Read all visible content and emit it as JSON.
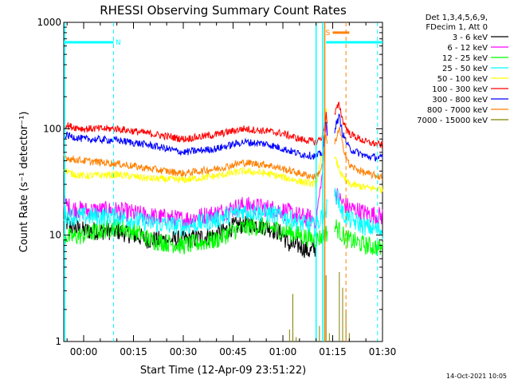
{
  "chart_data": {
    "type": "line",
    "title": "RHESSI Observing Summary Count Rates",
    "xlabel": "Start Time (12-Apr-09 23:51:22)",
    "ylabel": "Count Rate (s⁻¹ detector⁻¹)",
    "yscale": "log",
    "ylim": [
      1,
      1000
    ],
    "xlim_minutes_from_start": [
      -6,
      90
    ],
    "x_ticks": [
      {
        "label": "00:00",
        "t": 0
      },
      {
        "label": "00:15",
        "t": 15
      },
      {
        "label": "00:30",
        "t": 30
      },
      {
        "label": "00:45",
        "t": 45
      },
      {
        "label": "01:00",
        "t": 60
      },
      {
        "label": "01:15",
        "t": 75
      },
      {
        "label": "01:30",
        "t": 90
      }
    ],
    "y_ticks": [
      {
        "label": "1",
        "v": 1
      },
      {
        "label": "10",
        "v": 10
      },
      {
        "label": "100",
        "v": 100
      },
      {
        "label": "1000",
        "v": 1000
      }
    ],
    "legend": {
      "header": [
        "Det 1,3,4,5,6,9,",
        "FDecim 1, Att 0"
      ],
      "position": "right"
    },
    "series": [
      {
        "name": "3 - 6 keV",
        "color": "#000000",
        "x": [
          -6,
          -4,
          0,
          5,
          10,
          15,
          20,
          30,
          40,
          45,
          50,
          55,
          58,
          60,
          62,
          65,
          68,
          70
        ],
        "values": [
          14,
          12,
          11,
          11,
          11,
          10,
          9,
          9,
          10,
          12,
          13,
          12,
          11,
          10,
          8,
          8,
          7,
          7.5
        ]
      },
      {
        "name": "6 - 12 keV",
        "color": "#ff00ff",
        "x": [
          -6,
          -4,
          0,
          10,
          20,
          30,
          40,
          48,
          55,
          60,
          65,
          70,
          72,
          73,
          74,
          76,
          78,
          80,
          85,
          90
        ],
        "values": [
          20,
          18,
          17,
          17,
          15,
          14,
          16,
          19,
          18,
          17,
          15,
          14,
          40,
          120,
          40,
          24,
          20,
          18,
          16,
          15
        ]
      },
      {
        "name": "12 - 25 keV",
        "color": "#00ff00",
        "x": [
          -6,
          -4,
          0,
          5,
          10,
          15,
          20,
          30,
          40,
          45,
          50,
          55,
          60,
          65,
          70,
          76,
          78,
          80,
          85,
          90
        ],
        "values": [
          10,
          9.5,
          10,
          11,
          12,
          11,
          9,
          8,
          9,
          11,
          12,
          12,
          11,
          10,
          9,
          12,
          10,
          9,
          8,
          7.5
        ]
      },
      {
        "name": "25 - 50 keV",
        "color": "#00ffff",
        "x": [
          -6,
          -4,
          0,
          10,
          20,
          30,
          40,
          48,
          55,
          60,
          65,
          70,
          76,
          78,
          80,
          85,
          90
        ],
        "values": [
          16,
          15,
          15,
          15,
          13,
          12,
          14,
          17,
          16,
          15,
          13,
          12,
          25,
          16,
          14,
          12,
          11
        ]
      },
      {
        "name": "50 - 100 keV",
        "color": "#ffff00",
        "x": [
          -6,
          -4,
          0,
          10,
          20,
          30,
          40,
          48,
          55,
          60,
          65,
          70,
          72,
          73,
          74,
          76,
          78,
          80,
          85,
          90
        ],
        "values": [
          42,
          38,
          36,
          37,
          34,
          33,
          36,
          40,
          38,
          35,
          32,
          30,
          60,
          150,
          60,
          50,
          35,
          30,
          28,
          27
        ]
      },
      {
        "name": "100 - 300 keV",
        "color": "#ff0000",
        "x": [
          -6,
          -4,
          0,
          10,
          20,
          30,
          40,
          48,
          55,
          60,
          65,
          70,
          72,
          73,
          74,
          76,
          77,
          78,
          80,
          85,
          90
        ],
        "values": [
          110,
          105,
          100,
          100,
          90,
          80,
          88,
          100,
          95,
          90,
          80,
          75,
          85,
          140,
          80,
          150,
          170,
          120,
          90,
          75,
          70
        ]
      },
      {
        "name": "300 - 800 keV",
        "color": "#0000ff",
        "x": [
          -6,
          -4,
          0,
          10,
          20,
          30,
          40,
          48,
          55,
          60,
          65,
          70,
          72,
          73,
          74,
          76,
          77,
          78,
          80,
          85,
          90
        ],
        "values": [
          88,
          85,
          80,
          78,
          70,
          60,
          65,
          75,
          72,
          65,
          58,
          55,
          60,
          120,
          60,
          110,
          130,
          90,
          65,
          55,
          53
        ]
      },
      {
        "name": "800 - 7000 keV",
        "color": "#ff8000",
        "x": [
          -6,
          -4,
          0,
          10,
          20,
          30,
          40,
          48,
          55,
          60,
          65,
          70,
          72,
          73,
          74,
          76,
          77,
          78,
          80,
          85,
          90
        ],
        "values": [
          55,
          52,
          50,
          47,
          42,
          38,
          42,
          48,
          46,
          42,
          38,
          35,
          45,
          90,
          45,
          80,
          100,
          70,
          45,
          38,
          35
        ]
      },
      {
        "name": "7000 - 15000 keV",
        "color": "#808000",
        "x": [
          62,
          63,
          64,
          71,
          72,
          73,
          74,
          77,
          78,
          79,
          80
        ],
        "values": [
          1.3,
          2.8,
          1.1,
          1.4,
          3.5,
          4.2,
          1.2,
          4.5,
          3.2,
          2.0,
          1.2
        ]
      }
    ],
    "bars": [
      {
        "label": "N",
        "color": "#00ffff",
        "t_start": -6,
        "t_end": 9,
        "level": 650
      },
      {
        "label": "",
        "color": "#00ffff",
        "t_start": 73,
        "t_end": 90,
        "level": 650
      },
      {
        "label": "S",
        "color": "#ff8000",
        "t_start": 75,
        "t_end": 80,
        "level": 800
      }
    ],
    "markers": [
      {
        "color": "#00ffff",
        "style": "dashed",
        "t": 9
      },
      {
        "color": "#00ffff",
        "style": "solid",
        "t": 70
      },
      {
        "color": "#00ffff",
        "style": "solid",
        "t": 72
      },
      {
        "color": "#ff8000",
        "style": "solid",
        "t": 72.6
      },
      {
        "color": "#ff8000",
        "style": "dashed",
        "t": 79
      },
      {
        "color": "#00ffff",
        "style": "dashed",
        "t": 88.5
      }
    ]
  },
  "footer": {
    "timestamp": "14-Oct-2021 10:05"
  }
}
